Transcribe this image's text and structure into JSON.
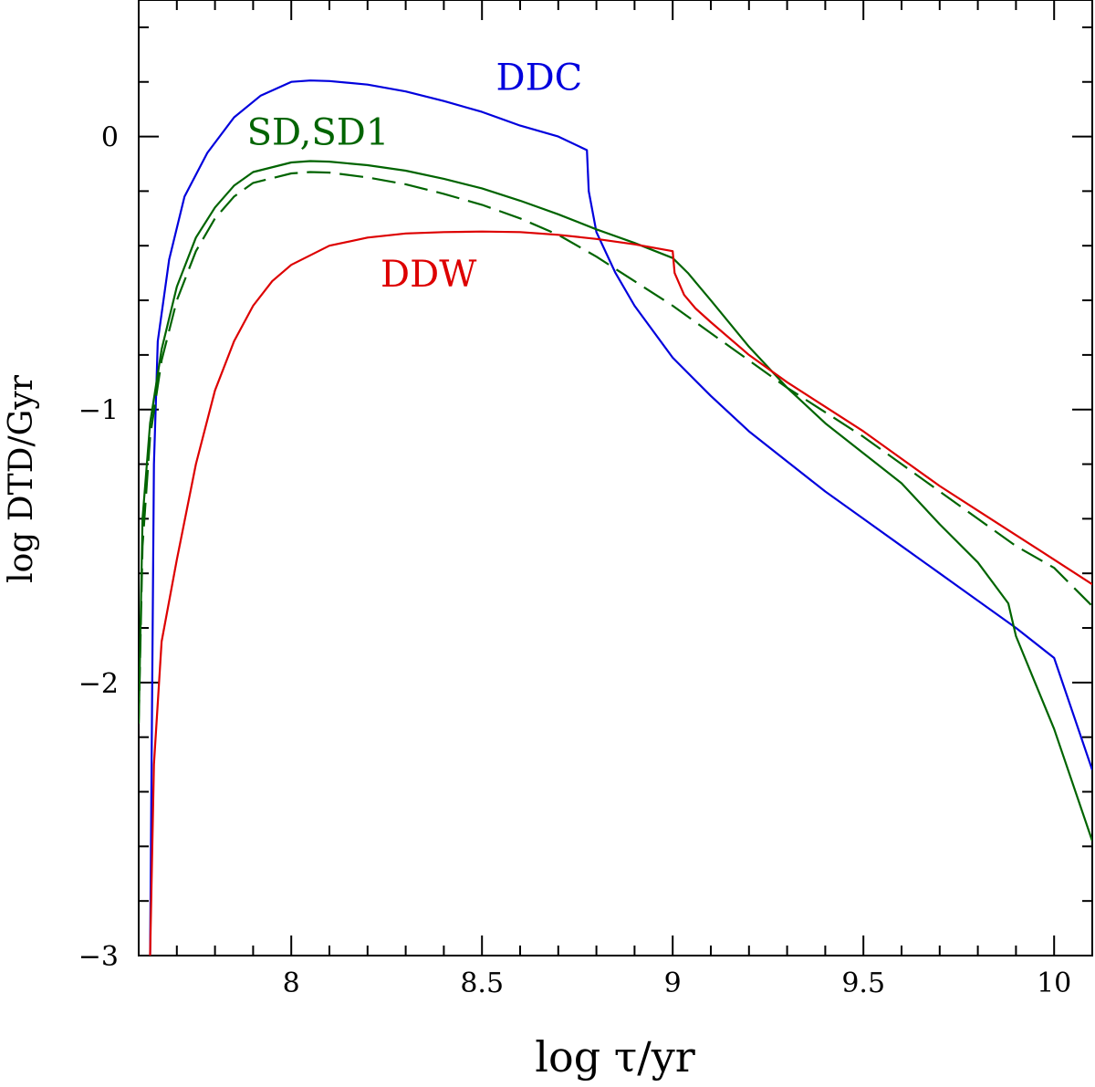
{
  "chart_data": {
    "type": "line",
    "title": "",
    "xlabel": "log τ/yr",
    "ylabel": "log DTD/Gyr",
    "xlim": [
      7.6,
      10.1
    ],
    "ylim": [
      -3.0,
      0.5
    ],
    "xticks": [
      {
        "value": 8,
        "label": "8"
      },
      {
        "value": 8.5,
        "label": "8.5"
      },
      {
        "value": 9,
        "label": "9"
      },
      {
        "value": 9.5,
        "label": "9.5"
      },
      {
        "value": 10,
        "label": "10"
      }
    ],
    "yticks": [
      {
        "value": 0,
        "label": "0"
      },
      {
        "value": -1,
        "label": "−1"
      },
      {
        "value": -2,
        "label": "−2"
      },
      {
        "value": -3,
        "label": "−3"
      }
    ],
    "x_minor_step": 0.1,
    "y_minor_step": 0.2,
    "grid": false,
    "series": [
      {
        "name": "DDC",
        "color": "#0000dd",
        "dash": "solid",
        "label_at": [
          8.55,
          0.18
        ],
        "points": [
          [
            7.63,
            -3.0
          ],
          [
            7.64,
            -1.2
          ],
          [
            7.65,
            -0.75
          ],
          [
            7.68,
            -0.45
          ],
          [
            7.72,
            -0.22
          ],
          [
            7.78,
            -0.06
          ],
          [
            7.85,
            0.07
          ],
          [
            7.92,
            0.15
          ],
          [
            8.0,
            0.2
          ],
          [
            8.05,
            0.205
          ],
          [
            8.1,
            0.203
          ],
          [
            8.2,
            0.19
          ],
          [
            8.3,
            0.165
          ],
          [
            8.4,
            0.13
          ],
          [
            8.5,
            0.09
          ],
          [
            8.6,
            0.04
          ],
          [
            8.7,
            0.0
          ],
          [
            8.775,
            -0.05
          ],
          [
            8.78,
            -0.2
          ],
          [
            8.8,
            -0.35
          ],
          [
            8.85,
            -0.5
          ],
          [
            8.9,
            -0.62
          ],
          [
            9.0,
            -0.81
          ],
          [
            9.1,
            -0.95
          ],
          [
            9.2,
            -1.08
          ],
          [
            9.3,
            -1.19
          ],
          [
            9.4,
            -1.3
          ],
          [
            9.5,
            -1.4
          ],
          [
            9.6,
            -1.5
          ],
          [
            9.7,
            -1.6
          ],
          [
            9.8,
            -1.7
          ],
          [
            9.9,
            -1.8
          ],
          [
            10.0,
            -1.91
          ],
          [
            10.1,
            -2.32
          ]
        ]
      },
      {
        "name": "SD",
        "color": "#006400",
        "dash": "solid",
        "points": [
          [
            7.6,
            -2.15
          ],
          [
            7.61,
            -1.4
          ],
          [
            7.63,
            -1.05
          ],
          [
            7.66,
            -0.78
          ],
          [
            7.7,
            -0.55
          ],
          [
            7.75,
            -0.37
          ],
          [
            7.8,
            -0.26
          ],
          [
            7.85,
            -0.18
          ],
          [
            7.9,
            -0.13
          ],
          [
            8.0,
            -0.095
          ],
          [
            8.05,
            -0.09
          ],
          [
            8.1,
            -0.092
          ],
          [
            8.2,
            -0.105
          ],
          [
            8.3,
            -0.125
          ],
          [
            8.4,
            -0.155
          ],
          [
            8.5,
            -0.19
          ],
          [
            8.6,
            -0.235
          ],
          [
            8.7,
            -0.285
          ],
          [
            8.8,
            -0.34
          ],
          [
            8.9,
            -0.39
          ],
          [
            9.0,
            -0.445
          ],
          [
            9.04,
            -0.5
          ],
          [
            9.1,
            -0.6
          ],
          [
            9.2,
            -0.77
          ],
          [
            9.3,
            -0.92
          ],
          [
            9.4,
            -1.05
          ],
          [
            9.5,
            -1.16
          ],
          [
            9.6,
            -1.27
          ],
          [
            9.7,
            -1.42
          ],
          [
            9.8,
            -1.56
          ],
          [
            9.88,
            -1.71
          ],
          [
            9.9,
            -1.83
          ],
          [
            9.95,
            -2.0
          ],
          [
            10.0,
            -2.17
          ],
          [
            10.1,
            -2.58
          ]
        ]
      },
      {
        "name": "SD1",
        "color": "#006400",
        "dash": "dashed",
        "points": [
          [
            7.6,
            -2.15
          ],
          [
            7.61,
            -1.5
          ],
          [
            7.63,
            -1.1
          ],
          [
            7.66,
            -0.82
          ],
          [
            7.7,
            -0.6
          ],
          [
            7.75,
            -0.42
          ],
          [
            7.8,
            -0.3
          ],
          [
            7.85,
            -0.22
          ],
          [
            7.9,
            -0.17
          ],
          [
            8.0,
            -0.135
          ],
          [
            8.05,
            -0.13
          ],
          [
            8.1,
            -0.132
          ],
          [
            8.2,
            -0.15
          ],
          [
            8.3,
            -0.175
          ],
          [
            8.4,
            -0.21
          ],
          [
            8.5,
            -0.25
          ],
          [
            8.6,
            -0.3
          ],
          [
            8.7,
            -0.36
          ],
          [
            8.8,
            -0.44
          ],
          [
            8.9,
            -0.53
          ],
          [
            9.0,
            -0.62
          ],
          [
            9.1,
            -0.72
          ],
          [
            9.2,
            -0.82
          ],
          [
            9.3,
            -0.92
          ],
          [
            9.4,
            -1.01
          ],
          [
            9.5,
            -1.1
          ],
          [
            9.6,
            -1.2
          ],
          [
            9.7,
            -1.3
          ],
          [
            9.8,
            -1.4
          ],
          [
            9.9,
            -1.5
          ],
          [
            10.0,
            -1.58
          ],
          [
            10.1,
            -1.72
          ]
        ]
      },
      {
        "name": "DDW",
        "color": "#dd0000",
        "dash": "solid",
        "label_at": [
          8.25,
          -0.5
        ],
        "points": [
          [
            7.63,
            -3.0
          ],
          [
            7.64,
            -2.3
          ],
          [
            7.66,
            -1.85
          ],
          [
            7.7,
            -1.55
          ],
          [
            7.75,
            -1.2
          ],
          [
            7.8,
            -0.93
          ],
          [
            7.85,
            -0.75
          ],
          [
            7.9,
            -0.62
          ],
          [
            7.95,
            -0.53
          ],
          [
            8.0,
            -0.47
          ],
          [
            8.1,
            -0.4
          ],
          [
            8.2,
            -0.37
          ],
          [
            8.3,
            -0.355
          ],
          [
            8.4,
            -0.35
          ],
          [
            8.5,
            -0.348
          ],
          [
            8.6,
            -0.35
          ],
          [
            8.7,
            -0.36
          ],
          [
            8.8,
            -0.375
          ],
          [
            8.9,
            -0.395
          ],
          [
            9.0,
            -0.42
          ],
          [
            9.005,
            -0.5
          ],
          [
            9.03,
            -0.58
          ],
          [
            9.06,
            -0.63
          ],
          [
            9.1,
            -0.68
          ],
          [
            9.2,
            -0.8
          ],
          [
            9.3,
            -0.9
          ],
          [
            9.4,
            -0.99
          ],
          [
            9.5,
            -1.08
          ],
          [
            9.6,
            -1.18
          ],
          [
            9.7,
            -1.28
          ],
          [
            9.8,
            -1.37
          ],
          [
            9.9,
            -1.46
          ],
          [
            10.0,
            -1.55
          ],
          [
            10.1,
            -1.64
          ]
        ]
      }
    ],
    "annotations": [
      {
        "text": "DDC",
        "color": "#0000dd",
        "at": [
          8.65,
          0.17
        ]
      },
      {
        "text": "SD,SD1",
        "color": "#006400",
        "at": [
          8.07,
          -0.03
        ]
      },
      {
        "text": "DDW",
        "color": "#dd0000",
        "at": [
          8.36,
          -0.55
        ]
      }
    ]
  }
}
